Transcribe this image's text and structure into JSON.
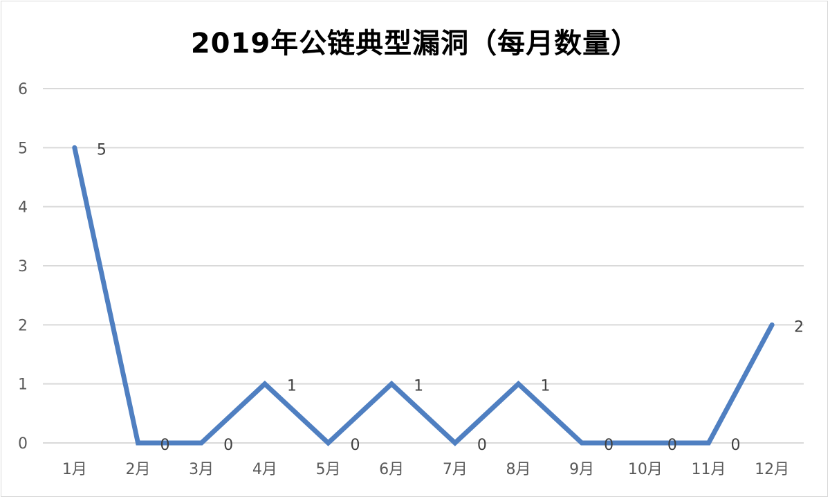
{
  "chart_data": {
    "type": "line",
    "title": "2019年公链典型漏洞（每月数量）",
    "xlabel": "",
    "ylabel": "",
    "categories": [
      "1月",
      "2月",
      "3月",
      "4月",
      "5月",
      "6月",
      "7月",
      "8月",
      "9月",
      "10月",
      "11月",
      "12月"
    ],
    "series": [
      {
        "values": [
          5,
          0,
          0,
          1,
          0,
          1,
          0,
          1,
          0,
          0,
          0,
          2
        ],
        "color": "#4f7fc1"
      }
    ],
    "ylim": [
      0,
      6
    ],
    "yticks": [
      "0",
      "1",
      "2",
      "3",
      "4",
      "5",
      "6"
    ],
    "grid": true,
    "legend": "none",
    "data_labels": true,
    "gridline_color": "#d9d9d9"
  }
}
